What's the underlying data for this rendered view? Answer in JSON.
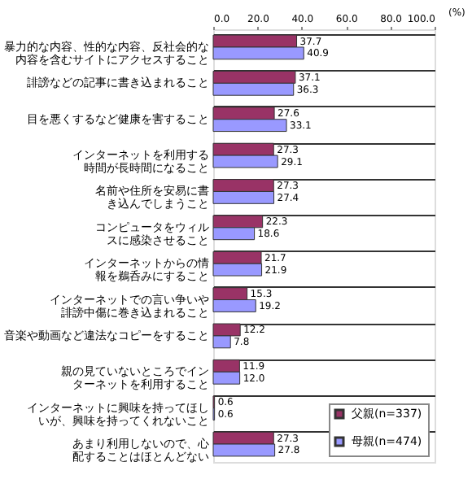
{
  "chart_data": {
    "type": "bar",
    "orientation": "horizontal",
    "xlabel": "(%)",
    "categories": [
      "暴力的な内容、性的な内容、反社会的な内容を含むサイトにアクセスすること",
      "誹謗などの記事に書き込まれること",
      "目を悪くするなど健康を害すること",
      "インターネットを利用する時間が長時間になること",
      "名前や住所を安易に書き込んでしまうこと",
      "コンピュータをウィルスに感染させること",
      "インターネットからの情報を鵜呑みにすること",
      "インターネットでの言い争いや誹謗中傷に巻き込まれること",
      "音楽や動画など違法なコピーをすること",
      "親の見ていないところでインターネットを利用すること",
      "インターネットに興味を持ってほしいが、興味を持ってくれないこと",
      "あまり利用しないので、心配することはほとんどない"
    ],
    "series": [
      {
        "name": "父親(n=337)",
        "color": "#993366",
        "values": [
          37.7,
          37.1,
          27.6,
          27.3,
          27.3,
          22.3,
          21.7,
          15.3,
          12.2,
          11.9,
          0.6,
          27.3
        ],
        "value_labels": [
          "37.7",
          "37.1",
          "27.6",
          "27.3",
          "27.3",
          "22.3",
          "21.7",
          "15.3",
          "12.2",
          "11.9",
          "0.6",
          "27.3"
        ]
      },
      {
        "name": "母親(n=474)",
        "color": "#9999ff",
        "values": [
          40.9,
          36.3,
          33.1,
          29.1,
          27.4,
          18.6,
          21.9,
          19.2,
          7.8,
          12.0,
          0.6,
          27.8
        ],
        "value_labels": [
          "40.9",
          "36.3",
          "33.1",
          "29.1",
          "27.4",
          "18.6",
          "21.9",
          "19.2",
          "7.8",
          "12.0",
          "0.6",
          "27.8"
        ]
      }
    ],
    "xlim": [
      0,
      100
    ],
    "xticks": [
      {
        "value": 0,
        "label": "0.0"
      },
      {
        "value": 20,
        "label": "20.0"
      },
      {
        "value": 40,
        "label": "40.0"
      },
      {
        "value": 60,
        "label": "60.0"
      },
      {
        "value": 80,
        "label": "80.0"
      },
      {
        "value": 100,
        "label": "100.0"
      }
    ],
    "grid": "y",
    "legend": "bottom right"
  }
}
